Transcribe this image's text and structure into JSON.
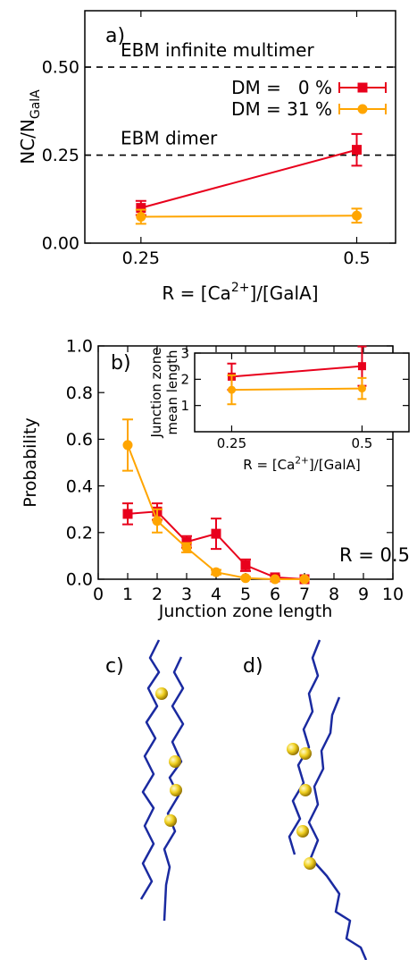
{
  "chart_data": [
    {
      "type": "line",
      "panel_label": "a)",
      "xlabel": [
        "R = [Ca",
        "2+",
        "]/[GalA]"
      ],
      "ylabel": [
        "NC/N",
        "GalA"
      ],
      "x": [
        0.25,
        0.5
      ],
      "xlim": [
        0.185,
        0.545
      ],
      "xticks": [
        0.25,
        0.5
      ],
      "ylim": [
        0,
        0.66
      ],
      "yticks": [
        {
          "value": 0,
          "label": "0.00"
        },
        {
          "value": 0.25,
          "label": "0.25"
        },
        {
          "value": 0.5,
          "label": "0.50"
        }
      ],
      "hlines": [
        {
          "value": 0.5,
          "label": "EBM infinite multimer"
        },
        {
          "value": 0.25,
          "label": "EBM dimer"
        }
      ],
      "legend": "top-right",
      "series": [
        {
          "name": "DM =   0 %",
          "color": "#e8001c",
          "marker": "square",
          "values": [
            0.1,
            0.265
          ],
          "errors": [
            0.02,
            0.045
          ]
        },
        {
          "name": "DM = 31 %",
          "color": "#ffa500",
          "marker": "circle",
          "values": [
            0.075,
            0.078
          ],
          "errors": [
            0.02,
            0.02
          ]
        }
      ]
    },
    {
      "type": "line",
      "panel_label": "b)",
      "annotation": "R = 0.5",
      "xlabel": "Junction zone length",
      "ylabel": "Probability",
      "x": [
        1,
        2,
        3,
        4,
        5,
        6,
        7
      ],
      "xlim": [
        0,
        10
      ],
      "xticks": [
        0,
        1,
        2,
        3,
        4,
        5,
        6,
        7,
        8,
        9,
        10
      ],
      "ylim": [
        0,
        1
      ],
      "yticks": [
        {
          "value": 0,
          "label": "0.0"
        },
        {
          "value": 0.2,
          "label": "0.2"
        },
        {
          "value": 0.4,
          "label": "0.4"
        },
        {
          "value": 0.6,
          "label": "0.6"
        },
        {
          "value": 0.8,
          "label": "0.8"
        },
        {
          "value": 1,
          "label": "1.0"
        }
      ],
      "series": [
        {
          "color": "#e8001c",
          "marker": "square",
          "values": [
            0.28,
            0.29,
            0.16,
            0.195,
            0.06,
            0.008,
            0
          ],
          "errors": [
            0.045,
            0.035,
            0.025,
            0.065,
            0.025,
            0.008,
            0
          ]
        },
        {
          "color": "#ffa500",
          "marker": "circle",
          "values": [
            0.575,
            0.25,
            0.135,
            0.03,
            0.005,
            0,
            0
          ],
          "errors": [
            0.11,
            0.05,
            0.02,
            0.01,
            0.005,
            0,
            0
          ]
        }
      ]
    },
    {
      "type": "line",
      "inset": true,
      "xlabel": [
        "R = [Ca",
        "2+",
        "]/[GalA]"
      ],
      "ylabel_lines": [
        "Junction zone",
        "mean length"
      ],
      "x": [
        0.25,
        0.5
      ],
      "xlim": [
        0.179,
        0.59
      ],
      "xticks": [
        0.25,
        0.5
      ],
      "ylim": [
        0,
        3
      ],
      "yticks": [
        1,
        2,
        3
      ],
      "series": [
        {
          "color": "#e8001c",
          "marker": "square",
          "values": [
            2.1,
            2.5
          ],
          "errors": [
            0.5,
            0.75
          ]
        },
        {
          "color": "#ffa500",
          "marker": "circle",
          "values": [
            1.6,
            1.65
          ],
          "errors": [
            0.55,
            0.4
          ]
        }
      ]
    }
  ],
  "panels": {
    "c": "c)",
    "d": "d)"
  }
}
